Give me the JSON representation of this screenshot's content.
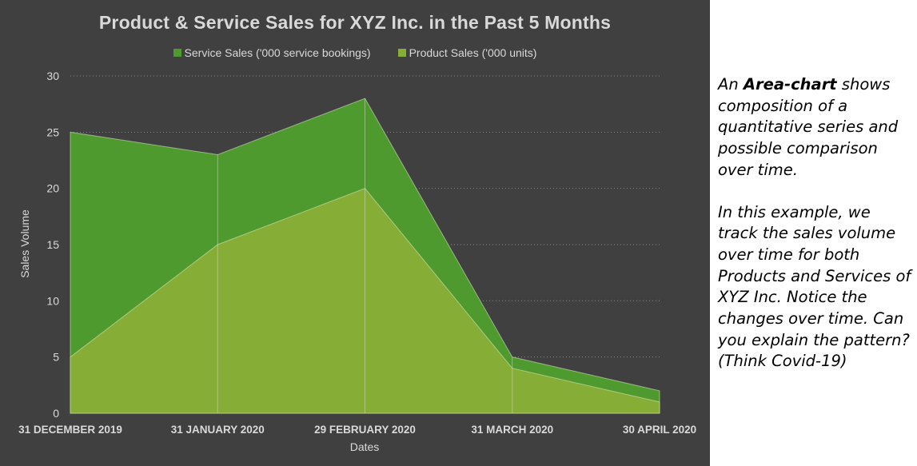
{
  "chart_data": {
    "type": "area",
    "title": "Product & Service Sales for XYZ Inc. in the Past 5 Months",
    "xlabel": "Dates",
    "ylabel": "Sales Volume",
    "categories": [
      "31 DECEMBER 2019",
      "31 JANUARY 2020",
      "29 FEBRUARY 2020",
      "31 MARCH 2020",
      "30 APRIL 2020"
    ],
    "series": [
      {
        "name": "Service Sales ('000 service bookings)",
        "values": [
          25,
          23,
          28,
          5,
          2
        ],
        "color": "#4e9a2e"
      },
      {
        "name": "Product Sales ('000 units)",
        "values": [
          5,
          15,
          20,
          4,
          1
        ],
        "color": "#86ad35"
      }
    ],
    "ylim": [
      0,
      30
    ],
    "yticks": [
      "0",
      "5",
      "10",
      "15",
      "20",
      "25",
      "30"
    ],
    "grid": true,
    "legend_position": "top-center",
    "background_color": "#404040"
  },
  "annotation": {
    "para1": {
      "before": "An ",
      "bold": "Area-chart",
      "after": " shows composition of a quantitative series and possible comparison over time."
    },
    "para2": "In this example, we track the sales volume over time for both Products and Services of XYZ Inc. Notice the changes over time. Can you explain the pattern? (Think Covid-19)"
  }
}
